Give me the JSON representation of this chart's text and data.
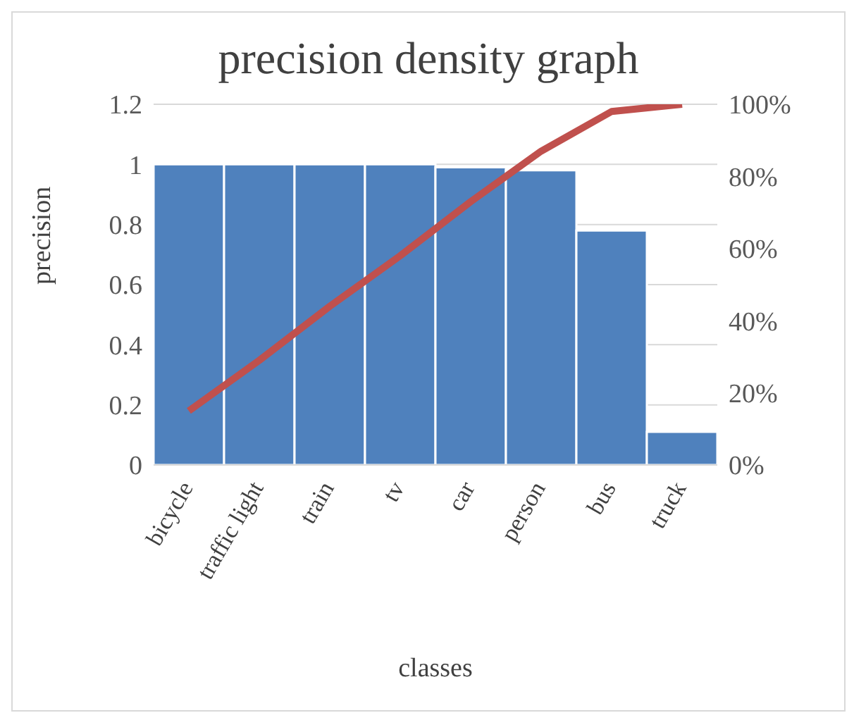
{
  "chart_data": {
    "type": "bar",
    "title": "precision density graph",
    "xlabel": "classes",
    "ylabel": "precision",
    "categories": [
      "bicycle",
      "traffic light",
      "train",
      "tv",
      "car",
      "person",
      "bus",
      "truck"
    ],
    "series": [
      {
        "color": "#4f81bd",
        "values": [
          1,
          1,
          1,
          1,
          0.99,
          0.98,
          0.78,
          0.11
        ]
      },
      {
        "type": "line",
        "axis": "y2",
        "color": "#c0504d",
        "values": [
          15,
          29,
          44,
          58,
          73,
          87,
          98,
          100
        ]
      }
    ],
    "ylim": [
      0,
      1.2
    ],
    "yticks": [
      0,
      {
        "value": 0.2,
        "label": "0.2"
      },
      {
        "value": 0.4,
        "label": "0.4"
      },
      {
        "value": 0.6,
        "label": "0.6"
      },
      {
        "value": 0.8,
        "label": "0.8"
      },
      1,
      {
        "value": 1.2,
        "label": "1.2"
      }
    ],
    "y2lim": [
      0,
      100
    ],
    "y2ticks": [
      {
        "value": 0,
        "label": "0%"
      },
      {
        "value": 20,
        "label": "20%"
      },
      {
        "value": 40,
        "label": "40%"
      },
      {
        "value": 60,
        "label": "60%"
      },
      {
        "value": 80,
        "label": "80%"
      },
      {
        "value": 100,
        "label": "100%"
      }
    ],
    "grid": "y",
    "legend": false,
    "marker": "none",
    "line_style": "solid"
  }
}
